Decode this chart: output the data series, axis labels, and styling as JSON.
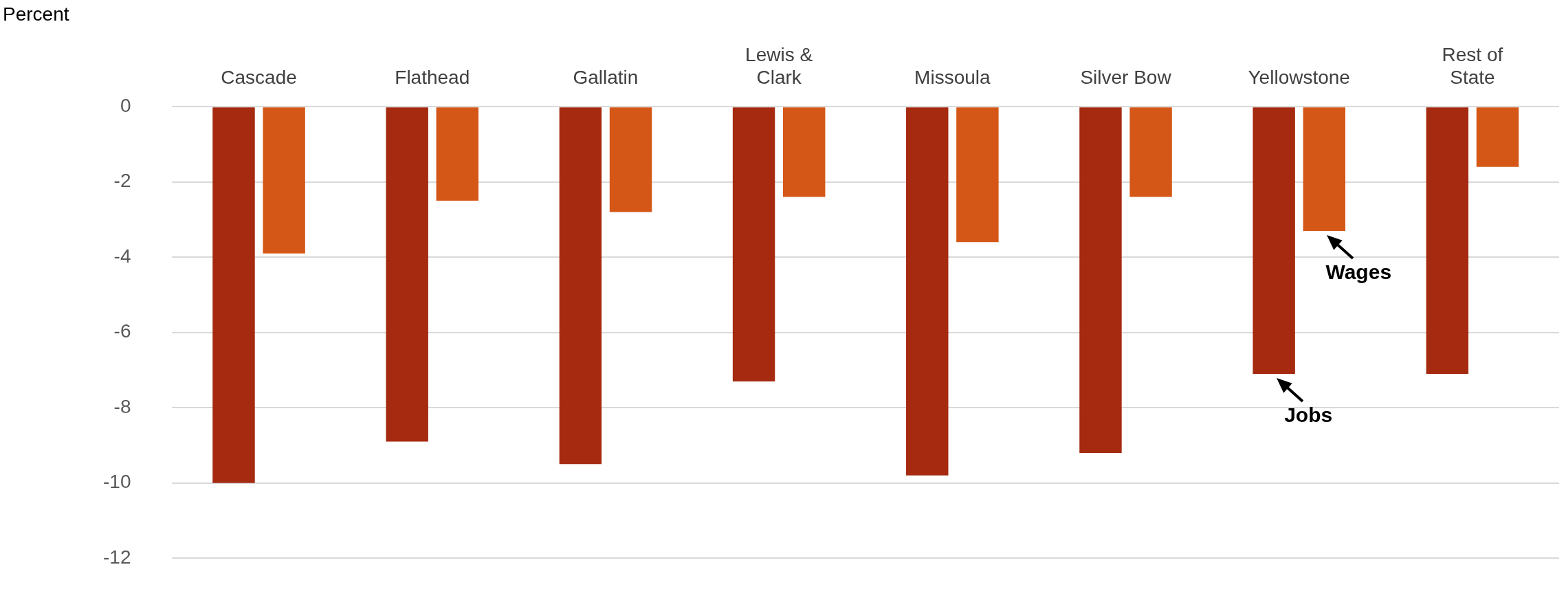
{
  "chart_data": {
    "type": "bar",
    "ylabel": "Percent",
    "categories": [
      "Cascade",
      "Flathead",
      "Gallatin",
      "Lewis & Clark",
      "Missoula",
      "Silver Bow",
      "Yellowstone",
      "Rest of State"
    ],
    "series": [
      {
        "name": "Jobs",
        "color": "#a52a10",
        "values": [
          -10,
          -8.9,
          -9.5,
          -7.3,
          -9.8,
          -9.2,
          -7.1,
          -7.1
        ]
      },
      {
        "name": "Wages",
        "color": "#d55717",
        "values": [
          -3.9,
          -2.5,
          -2.8,
          -2.4,
          -3.6,
          -2.4,
          -3.3,
          -1.6
        ]
      }
    ],
    "ylim": [
      -12,
      0
    ],
    "yticks": [
      -12,
      -10,
      -8,
      -6,
      -4,
      -2,
      0
    ],
    "grid": "y",
    "legend": false
  }
}
